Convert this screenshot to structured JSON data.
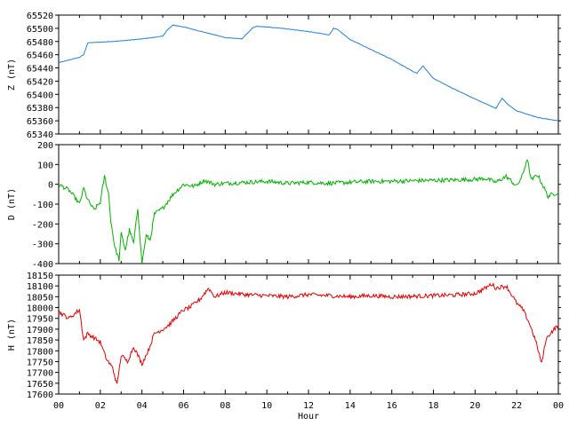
{
  "chart_data": [
    {
      "type": "line",
      "ylabel": "Z (nT)",
      "xlabel": "",
      "xlim": [
        0,
        24
      ],
      "ylim": [
        65340,
        65520
      ],
      "yticks": [
        65340,
        65360,
        65380,
        65400,
        65420,
        65440,
        65460,
        65480,
        65500,
        65520
      ],
      "color": "#1f7fe0",
      "x": [
        0,
        1,
        1.2,
        1.4,
        2,
        3,
        4,
        5,
        5.2,
        5.5,
        6,
        7,
        8,
        8.8,
        9.3,
        9.5,
        10,
        11,
        12,
        13,
        13.2,
        13.4,
        14,
        15,
        16,
        17,
        17.2,
        17.5,
        18,
        19,
        20,
        21,
        21.3,
        21.6,
        22,
        23,
        24
      ],
      "y": [
        65448,
        65456,
        65460,
        65478,
        65479,
        65481,
        65484,
        65488,
        65497,
        65505,
        65502,
        65494,
        65486,
        65484,
        65500,
        65503,
        65502,
        65499,
        65495,
        65490,
        65500,
        65498,
        65483,
        65468,
        65453,
        65435,
        65432,
        65443,
        65424,
        65408,
        65393,
        65379,
        65394,
        65384,
        65375,
        65365,
        65360
      ]
    },
    {
      "type": "line",
      "ylabel": "D (nT)",
      "xlabel": "",
      "xlim": [
        0,
        24
      ],
      "ylim": [
        -400,
        200
      ],
      "yticks": [
        -400,
        -300,
        -200,
        -100,
        0,
        100,
        200
      ],
      "color": "#00b400",
      "x": [
        0,
        0.5,
        0.8,
        1,
        1.2,
        1.4,
        1.7,
        2,
        2.2,
        2.4,
        2.5,
        2.7,
        2.9,
        3,
        3.2,
        3.4,
        3.6,
        3.8,
        4,
        4.2,
        4.4,
        4.6,
        5,
        5.5,
        6,
        6.5,
        7,
        7.5,
        8,
        9,
        10,
        11,
        12,
        13,
        14,
        15,
        16,
        17,
        18,
        19,
        20,
        20.5,
        21,
        21.5,
        22,
        22.3,
        22.5,
        22.7,
        23,
        23.5,
        24
      ],
      "y": [
        0,
        -30,
        -70,
        -100,
        -20,
        -80,
        -130,
        -90,
        40,
        -50,
        -180,
        -320,
        -380,
        -250,
        -330,
        -230,
        -300,
        -120,
        -400,
        -260,
        -280,
        -150,
        -120,
        -50,
        0,
        -10,
        20,
        0,
        5,
        10,
        15,
        5,
        10,
        5,
        10,
        15,
        15,
        18,
        20,
        22,
        25,
        30,
        10,
        40,
        -10,
        50,
        130,
        20,
        50,
        -60,
        -40
      ]
    },
    {
      "type": "line",
      "ylabel": "H (nT)",
      "xlabel": "Hour",
      "xlim": [
        0,
        24
      ],
      "ylim": [
        17600,
        18150
      ],
      "yticks": [
        17600,
        17650,
        17700,
        17750,
        17800,
        17850,
        17900,
        17950,
        18000,
        18050,
        18100,
        18150
      ],
      "xticks": [
        "00",
        "02",
        "04",
        "06",
        "08",
        "10",
        "12",
        "14",
        "16",
        "18",
        "20",
        "22",
        "00"
      ],
      "color": "#e60000",
      "x": [
        0,
        0.5,
        1,
        1.2,
        1.4,
        1.7,
        2,
        2.3,
        2.6,
        2.8,
        3,
        3.3,
        3.6,
        4,
        4.3,
        4.6,
        5,
        5.3,
        5.7,
        6,
        6.3,
        6.8,
        7.2,
        7.5,
        8,
        9,
        10,
        11,
        12,
        13,
        14,
        15,
        16,
        17,
        18,
        19,
        20,
        20.5,
        20.8,
        21,
        21.5,
        22,
        22.3,
        22.6,
        22.9,
        23.2,
        23.4,
        23.6,
        24
      ],
      "y": [
        17980,
        17950,
        17990,
        17850,
        17880,
        17860,
        17840,
        17760,
        17720,
        17640,
        17780,
        17750,
        17820,
        17740,
        17800,
        17880,
        17900,
        17920,
        17960,
        17990,
        18000,
        18040,
        18090,
        18050,
        18070,
        18060,
        18055,
        18050,
        18060,
        18055,
        18050,
        18055,
        18050,
        18052,
        18055,
        18058,
        18065,
        18090,
        18110,
        18090,
        18100,
        18020,
        17990,
        17930,
        17850,
        17740,
        17850,
        17880,
        17920
      ]
    }
  ]
}
